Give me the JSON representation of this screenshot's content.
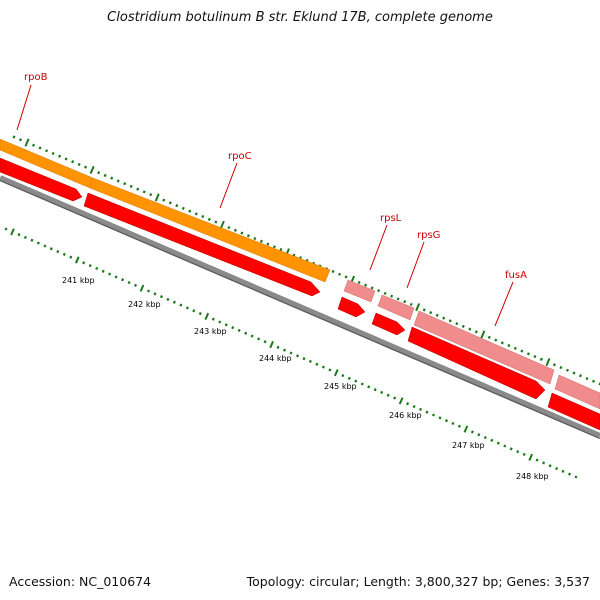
{
  "title": "Clostridium botulinum B str. Eklund 17B, complete genome",
  "accession_text": "Accession: NC_010674",
  "summary_text": "Topology: circular; Length: 3,800,327 bp; Genes: 3,537",
  "colors": {
    "tick": "#1a7a1a",
    "backbone": "#7a7a7a",
    "gene_red": "#ff0000",
    "gene_pink": "#f08080",
    "gene_orange": "#ff8c00",
    "label_red": "#cc0000",
    "kbp_text": "#000000"
  },
  "genes": [
    {
      "name": "rpoB"
    },
    {
      "name": "rpoC"
    },
    {
      "name": "rpsL"
    },
    {
      "name": "rpsG"
    },
    {
      "name": "fusA"
    }
  ],
  "kbp_labels": [
    "241 kbp",
    "242 kbp",
    "243 kbp",
    "244 kbp",
    "245 kbp",
    "246 kbp",
    "247 kbp",
    "248 kbp"
  ]
}
